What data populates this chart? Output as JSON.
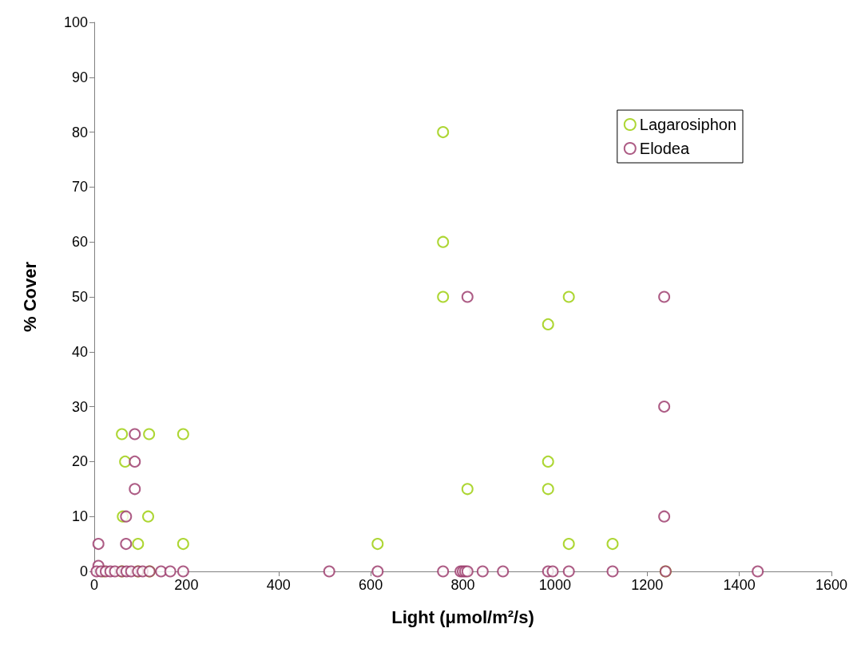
{
  "chart_data": {
    "type": "scatter",
    "xlabel": "Light (μmol/m²/s)",
    "ylabel": "% Cover",
    "xlim": [
      0,
      1600
    ],
    "xticks": [
      0,
      200,
      400,
      600,
      800,
      1000,
      1200,
      1400,
      1600
    ],
    "ylim": [
      0,
      100
    ],
    "yticks": [
      0,
      10,
      20,
      30,
      40,
      50,
      60,
      70,
      80,
      90,
      100
    ],
    "grid": false,
    "legend": "top right",
    "marker": "circle",
    "series": [
      {
        "name": "Lagarosiphon",
        "color": "#99cc00",
        "x": [
          60,
          119,
          193,
          67,
          62,
          117,
          95,
          193,
          615,
          757,
          757,
          757,
          810,
          985,
          985,
          985,
          1030,
          1030,
          1125,
          20,
          60,
          95,
          120,
          1240
        ],
        "values": [
          25,
          25,
          25,
          20,
          10,
          10,
          5,
          5,
          5,
          80,
          60,
          50,
          15,
          45,
          20,
          15,
          50,
          5,
          5,
          0,
          0,
          0,
          0,
          0
        ]
      },
      {
        "name": "Elodea",
        "color": "#993366",
        "x": [
          88,
          88,
          88,
          69,
          69,
          9,
          9,
          810,
          1237,
          1237,
          1237,
          5,
          15,
          25,
          35,
          45,
          60,
          70,
          80,
          95,
          105,
          120,
          145,
          165,
          193,
          510,
          615,
          757,
          795,
          800,
          805,
          810,
          843,
          887,
          985,
          995,
          1030,
          1125,
          1240,
          1440
        ],
        "values": [
          25,
          20,
          15,
          10,
          5,
          5,
          1,
          50,
          50,
          30,
          10,
          0,
          0,
          0,
          0,
          0,
          0,
          0,
          0,
          0,
          0,
          0,
          0,
          0,
          0,
          0,
          0,
          0,
          0,
          0,
          0,
          0,
          0,
          0,
          0,
          0,
          0,
          0,
          0,
          0
        ]
      }
    ]
  }
}
